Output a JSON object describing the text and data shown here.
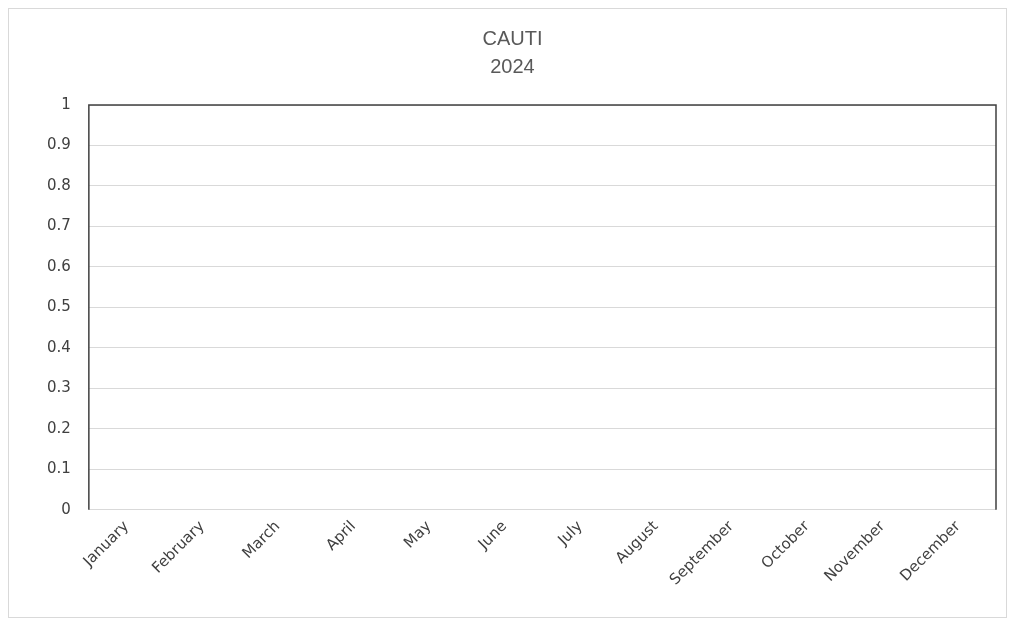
{
  "chart_data": {
    "type": "bar",
    "title": "CAUTI",
    "subtitle": "2024",
    "categories": [
      "January",
      "February",
      "March",
      "April",
      "May",
      "June",
      "July",
      "August",
      "September",
      "October",
      "November",
      "December"
    ],
    "values": [
      null,
      null,
      null,
      null,
      null,
      null,
      null,
      null,
      null,
      null,
      null,
      null
    ],
    "ylim": [
      0,
      1
    ],
    "yticks": [
      0,
      0.1,
      0.2,
      0.3,
      0.4,
      0.5,
      0.6,
      0.7,
      0.8,
      0.9,
      1
    ],
    "grid": "y"
  }
}
